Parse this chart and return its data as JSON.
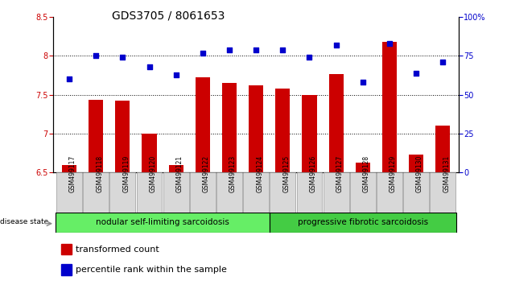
{
  "title": "GDS3705 / 8061653",
  "samples": [
    "GSM499117",
    "GSM499118",
    "GSM499119",
    "GSM499120",
    "GSM499121",
    "GSM499122",
    "GSM499123",
    "GSM499124",
    "GSM499125",
    "GSM499126",
    "GSM499127",
    "GSM499128",
    "GSM499129",
    "GSM499130",
    "GSM499131"
  ],
  "bar_values": [
    6.6,
    7.43,
    7.42,
    7.0,
    6.6,
    7.72,
    7.65,
    7.62,
    7.58,
    7.5,
    7.77,
    6.63,
    8.18,
    6.73,
    7.1
  ],
  "dot_values": [
    60,
    75,
    74,
    68,
    63,
    77,
    79,
    79,
    79,
    74,
    82,
    58,
    83,
    64,
    71
  ],
  "ylim_left": [
    6.5,
    8.5
  ],
  "ylim_right": [
    0,
    100
  ],
  "bar_color": "#cc0000",
  "dot_color": "#0000cc",
  "group1_label": "nodular self-limiting sarcoidosis",
  "group2_label": "progressive fibrotic sarcoidosis",
  "group1_color": "#66ee66",
  "group2_color": "#44cc44",
  "group1_count": 8,
  "group2_count": 7,
  "disease_state_label": "disease state",
  "legend_bar_label": "transformed count",
  "legend_dot_label": "percentile rank within the sample",
  "yticks_left": [
    6.5,
    7.0,
    7.5,
    8.0,
    8.5
  ],
  "yticks_right": [
    0,
    25,
    50,
    75,
    100
  ],
  "gridlines": [
    7.0,
    7.5,
    8.0
  ],
  "title_fontsize": 10,
  "tick_fontsize": 7,
  "sample_fontsize": 5.5,
  "legend_fontsize": 8,
  "disease_fontsize": 7.5
}
